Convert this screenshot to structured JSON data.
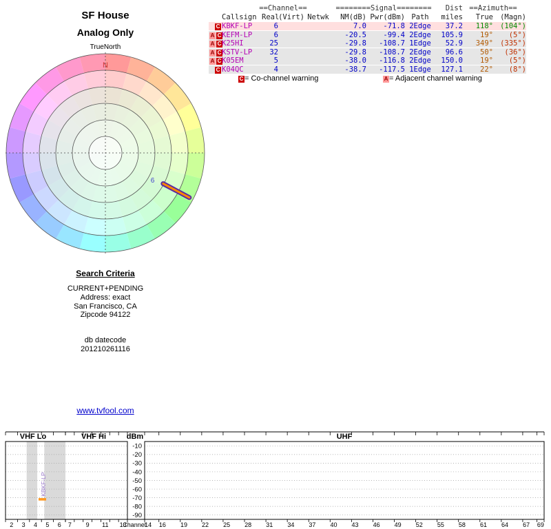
{
  "header": {
    "title_line1": "SF House",
    "title_line2": "Analog Only",
    "true_north_label": "TrueNorth",
    "north_marker": "N"
  },
  "radar": {
    "north_color": "#cc3333",
    "pointer": {
      "channel_label": "6",
      "azimuth_true_deg": 118,
      "line_color": "#5a2ca0",
      "core_color": "#ff8800",
      "label_color": "#4444cc"
    }
  },
  "table": {
    "group_header": {
      "channel": "==Channel==",
      "signal": "========Signal========",
      "dist": "Dist",
      "azimuth": "==Azimuth=="
    },
    "columns": [
      "Callsign",
      "Real",
      "(Virt)",
      "Netwk",
      "NM(dB)",
      "Pwr(dBm)",
      "Path",
      "miles",
      "True",
      "(Magn)"
    ],
    "rows": [
      {
        "badges": [
          "C"
        ],
        "callsign": "KBKF-LP",
        "real": "6",
        "virt": "",
        "netwk": "",
        "nm": "7.0",
        "pwr": "-71.8",
        "path": "2Edge",
        "dist": "37.2",
        "true_az": "118°",
        "magn_az": "(104°)",
        "highlight": true,
        "az_true_color": "#008a00",
        "az_magn_color": "#008a00"
      },
      {
        "badges": [
          "A",
          "C"
        ],
        "callsign": "KEFM-LP",
        "real": "6",
        "virt": "",
        "netwk": "",
        "nm": "-20.5",
        "pwr": "-99.4",
        "path": "2Edge",
        "dist": "105.9",
        "true_az": "19°",
        "magn_az": "(5°)",
        "highlight": false,
        "az_true_color": "#b25900",
        "az_magn_color": "#c03000"
      },
      {
        "badges": [
          "A",
          "C"
        ],
        "callsign": "K25HI",
        "real": "25",
        "virt": "",
        "netwk": "",
        "nm": "-29.8",
        "pwr": "-108.7",
        "path": "1Edge",
        "dist": "52.9",
        "true_az": "349°",
        "magn_az": "(335°)",
        "highlight": false,
        "az_true_color": "#b25900",
        "az_magn_color": "#c03000"
      },
      {
        "badges": [
          "A",
          "C"
        ],
        "callsign": "KSTV-LP",
        "real": "32",
        "virt": "",
        "netwk": "",
        "nm": "-29.8",
        "pwr": "-108.7",
        "path": "2Edge",
        "dist": "96.6",
        "true_az": "50°",
        "magn_az": "(36°)",
        "highlight": false,
        "az_true_color": "#b25900",
        "az_magn_color": "#c03000"
      },
      {
        "badges": [
          "A",
          "C"
        ],
        "callsign": "K05EM",
        "real": "5",
        "virt": "",
        "netwk": "",
        "nm": "-38.0",
        "pwr": "-116.8",
        "path": "2Edge",
        "dist": "150.0",
        "true_az": "19°",
        "magn_az": "(5°)",
        "highlight": false,
        "az_true_color": "#b25900",
        "az_magn_color": "#c03000"
      },
      {
        "badges": [
          "C"
        ],
        "callsign": "K04QC",
        "real": "4",
        "virt": "",
        "netwk": "",
        "nm": "-38.7",
        "pwr": "-117.5",
        "path": "1Edge",
        "dist": "127.1",
        "true_az": "22°",
        "magn_az": "(8°)",
        "highlight": false,
        "az_true_color": "#b25900",
        "az_magn_color": "#c03000"
      }
    ],
    "badge_styles": {
      "C": {
        "bg": "#cc0000",
        "fg": "#ffffff"
      },
      "A": {
        "bg": "#ff9999",
        "fg": "#990000"
      }
    },
    "legend": [
      {
        "badge": "C",
        "text": "= Co-channel warning"
      },
      {
        "badge": "A",
        "text": "= Adjacent channel warning"
      }
    ],
    "colors": {
      "callsign": "#b400b4",
      "number": "#0000c8",
      "highlight_bg": "#ffdfdf",
      "row_bg": "#e6e6e6"
    }
  },
  "search_criteria": {
    "heading": "Search Criteria",
    "lines": [
      "CURRENT+PENDING",
      "Address: exact",
      "San Francisco, CA",
      "Zipcode 94122"
    ],
    "db_label": "db datecode",
    "db_value": "201210261116"
  },
  "footer_link": "www.tvfool.com",
  "spectrum": {
    "sections": {
      "vhf_lo": "VHF Lo",
      "vhf_hi": "VHF Hi",
      "uhf": "UHF"
    },
    "dbm_label": "dBm",
    "channel_label": "Channel",
    "y_tick_labels": [
      "-10",
      "-20",
      "-30",
      "-40",
      "-50",
      "-60",
      "-70",
      "-80",
      "-90"
    ],
    "vhf_lo_channels": [
      "2",
      "3",
      "4",
      "5",
      "6"
    ],
    "vhf_hi_channels": [
      "7",
      "9",
      "11",
      "13"
    ],
    "uhf_channels": [
      "14",
      "16",
      "19",
      "22",
      "25",
      "28",
      "31",
      "34",
      "37",
      "40",
      "43",
      "46",
      "49",
      "52",
      "55",
      "58",
      "61",
      "64",
      "67",
      "69"
    ],
    "vhf_lo_freq_range_mhz": [
      54,
      88
    ],
    "shaded_bands_mhz": [
      {
        "from": 66,
        "to": 72
      },
      {
        "from": 76,
        "to": 88
      }
    ],
    "markers": [
      {
        "callsign": "KBKF-LP",
        "channel": 6,
        "power_dbm": -71.8,
        "marker_color": "#ff9922",
        "label_color": "#9977cc"
      }
    ]
  }
}
